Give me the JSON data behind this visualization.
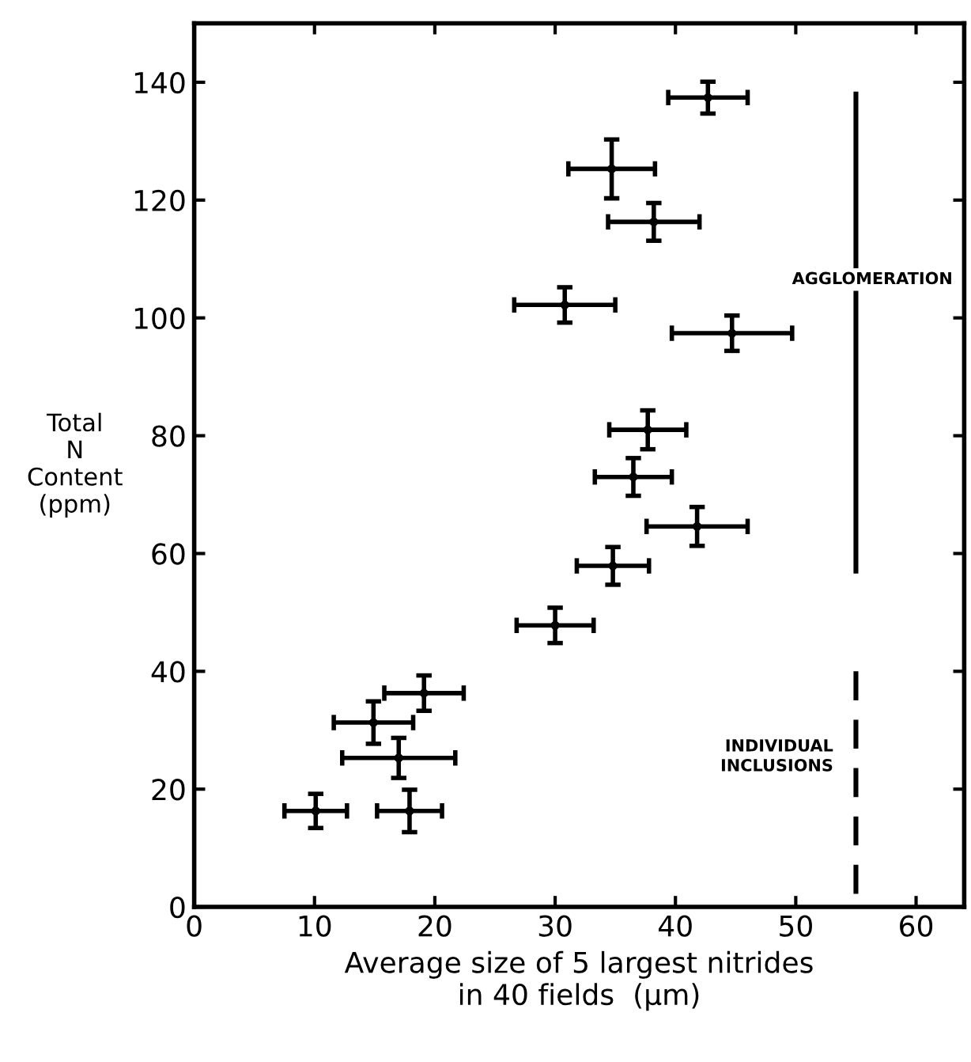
{
  "chart_data": {
    "type": "scatter",
    "xlabel": "Average size of 5 largest nitrides\nin 40 fields  (μm)",
    "ylabel": "Total\nN\nContent\n(ppm)",
    "marker": "circle",
    "grid": false,
    "legend": false,
    "xlim": [
      0,
      64
    ],
    "ylim": [
      0,
      150
    ],
    "xticks": [
      0,
      10,
      20,
      30,
      40,
      50,
      60
    ],
    "yticks": [
      0,
      20,
      40,
      60,
      80,
      100,
      120,
      140
    ],
    "series": [
      {
        "color": "#000000",
        "x": [
          42.7,
          34.7,
          38.2,
          30.8,
          44.7,
          37.7,
          36.5,
          41.8,
          34.8,
          30.0,
          19.1,
          14.9,
          17.0,
          10.1,
          17.9
        ],
        "values": [
          137.4,
          125.3,
          116.3,
          102.2,
          97.4,
          81.0,
          73.0,
          64.6,
          57.9,
          47.8,
          36.3,
          31.3,
          25.3,
          16.3,
          16.3
        ],
        "xerrors": [
          3.3,
          3.6,
          3.8,
          4.2,
          5,
          3.2,
          3.2,
          4.2,
          3,
          3.2,
          3.3,
          3.3,
          4.7,
          2.6,
          2.7
        ],
        "errors": [
          2.7,
          5,
          3.2,
          3,
          3,
          3.3,
          3.2,
          3.3,
          3.2,
          3,
          3,
          3.6,
          3.4,
          2.9,
          3.6
        ]
      },
      {
        "type": "line",
        "marker": "none",
        "color": "#000000",
        "line_style": "solid",
        "x": [
          55,
          55
        ],
        "values": [
          138,
          57
        ]
      },
      {
        "type": "line",
        "marker": "none",
        "color": "#000000",
        "line_style": "dashed",
        "x": [
          55,
          55
        ],
        "values": [
          40,
          0
        ]
      }
    ],
    "annotations": [
      "AGGLOMERATION",
      "INDIVIDUAL\nINCLUSIONS"
    ]
  }
}
